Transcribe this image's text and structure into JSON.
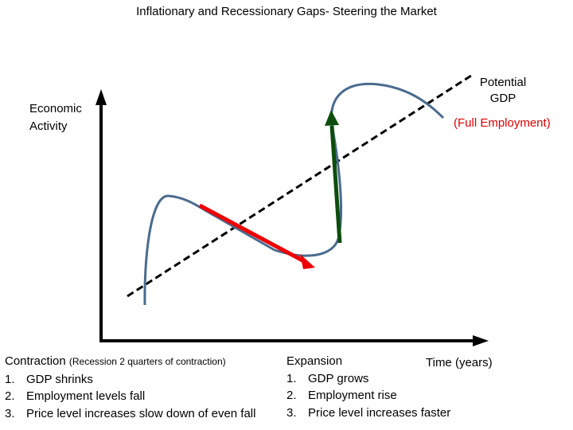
{
  "title": "Inflationary and Recessionary Gaps- Steering the Market",
  "y_axis_label": [
    "Economic",
    "Activity"
  ],
  "x_axis_label": "Time (years)",
  "potential_label": [
    "Potential",
    "GDP"
  ],
  "full_employment_label": "(Full Employment)",
  "contraction": {
    "heading": "Contraction",
    "note": "(Recession 2 quarters of contraction)",
    "items": [
      "GDP shrinks",
      "Employment levels fall",
      "Price level increases slow down of even fall"
    ]
  },
  "expansion": {
    "heading": "Expansion",
    "items": [
      "GDP grows",
      "Employment rise",
      "Price level increases faster"
    ]
  },
  "colors": {
    "axis": "#000000",
    "cycle_curve": "#4a6b8f",
    "trend_line": "#000000",
    "contraction_arrow": "#ee0000",
    "expansion_arrow": "#0d4d0d",
    "full_employment_text": "#e00000"
  }
}
